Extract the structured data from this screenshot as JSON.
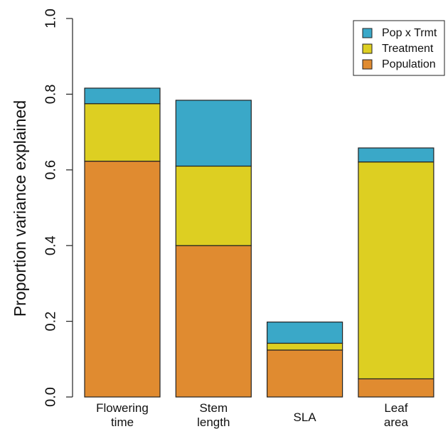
{
  "chart_data": {
    "type": "bar",
    "stacked": true,
    "categories": [
      [
        "Flowering",
        "time"
      ],
      [
        "Stem",
        "length"
      ],
      [
        "SLA"
      ],
      [
        "Leaf",
        "area"
      ]
    ],
    "series": [
      {
        "name": "Population",
        "color": "#E08B30",
        "values": [
          0.623,
          0.4,
          0.124,
          0.048
        ]
      },
      {
        "name": "Treatment",
        "color": "#DDCF22",
        "values": [
          0.152,
          0.21,
          0.018,
          0.573
        ]
      },
      {
        "name": "Pop x Trmt",
        "color": "#3AA8C8",
        "values": [
          0.041,
          0.174,
          0.056,
          0.037
        ]
      }
    ],
    "legend_order": [
      "Pop x Trmt",
      "Treatment",
      "Population"
    ],
    "legend_position": "top-right",
    "ylabel": "Proportion variance explained",
    "ylim": [
      0,
      1
    ],
    "yticks": [
      0,
      0.2,
      0.4,
      0.6,
      0.8,
      1
    ],
    "ytick_labels": [
      "0.0",
      "0.2",
      "0.4",
      "0.6",
      "0.8",
      "1.0"
    ],
    "grid": false
  }
}
